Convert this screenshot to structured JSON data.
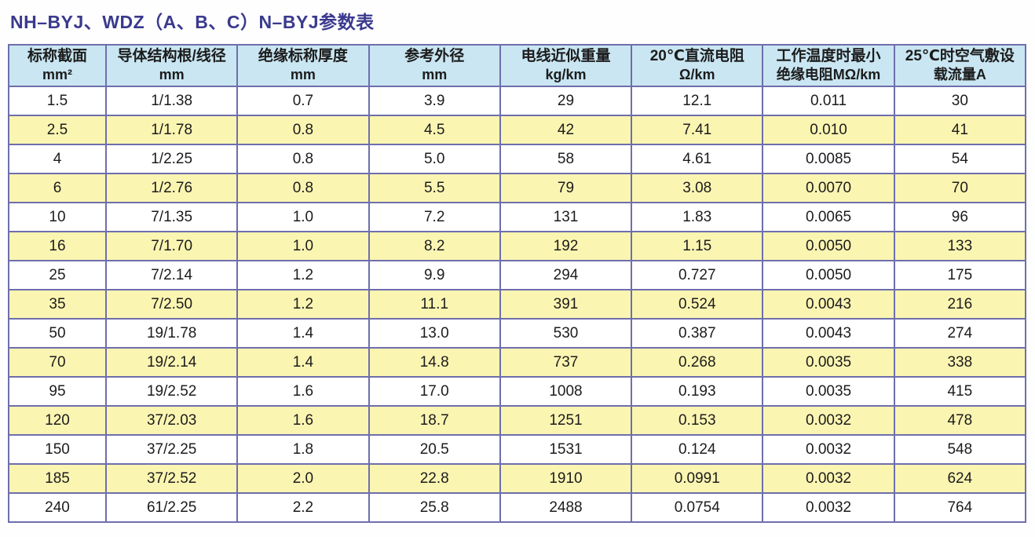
{
  "page": {
    "title": "NH–BYJ、WDZ（A、B、C）N–BYJ参数表"
  },
  "colors": {
    "title_text": "#3a3a8e",
    "header_background": "#c9e6f2",
    "row_alt_background": "#fbf5b2",
    "row_background": "#ffffff",
    "grid_border": "#6e6ead",
    "cell_text": "#1c1c1c"
  },
  "table": {
    "columns": [
      {
        "line1": "标称截面",
        "line2": "mm²"
      },
      {
        "line1": "导体结构根/线径",
        "line2": "mm"
      },
      {
        "line1": "绝缘标称厚度",
        "line2": "mm"
      },
      {
        "line1": "参考外径",
        "line2": "mm"
      },
      {
        "line1": "电线近似重量",
        "line2": "kg/km"
      },
      {
        "line1": "20℃直流电阻",
        "line2": "Ω/km"
      },
      {
        "line1": "工作温度时最小",
        "line2": "绝缘电阻MΩ/km"
      },
      {
        "line1": "25℃时空气敷设",
        "line2": "载流量A"
      }
    ],
    "rows": [
      [
        "1.5",
        "1/1.38",
        "0.7",
        "3.9",
        "29",
        "12.1",
        "0.011",
        "30"
      ],
      [
        "2.5",
        "1/1.78",
        "0.8",
        "4.5",
        "42",
        "7.41",
        "0.010",
        "41"
      ],
      [
        "4",
        "1/2.25",
        "0.8",
        "5.0",
        "58",
        "4.61",
        "0.0085",
        "54"
      ],
      [
        "6",
        "1/2.76",
        "0.8",
        "5.5",
        "79",
        "3.08",
        "0.0070",
        "70"
      ],
      [
        "10",
        "7/1.35",
        "1.0",
        "7.2",
        "131",
        "1.83",
        "0.0065",
        "96"
      ],
      [
        "16",
        "7/1.70",
        "1.0",
        "8.2",
        "192",
        "1.15",
        "0.0050",
        "133"
      ],
      [
        "25",
        "7/2.14",
        "1.2",
        "9.9",
        "294",
        "0.727",
        "0.0050",
        "175"
      ],
      [
        "35",
        "7/2.50",
        "1.2",
        "11.1",
        "391",
        "0.524",
        "0.0043",
        "216"
      ],
      [
        "50",
        "19/1.78",
        "1.4",
        "13.0",
        "530",
        "0.387",
        "0.0043",
        "274"
      ],
      [
        "70",
        "19/2.14",
        "1.4",
        "14.8",
        "737",
        "0.268",
        "0.0035",
        "338"
      ],
      [
        "95",
        "19/2.52",
        "1.6",
        "17.0",
        "1008",
        "0.193",
        "0.0035",
        "415"
      ],
      [
        "120",
        "37/2.03",
        "1.6",
        "18.7",
        "1251",
        "0.153",
        "0.0032",
        "478"
      ],
      [
        "150",
        "37/2.25",
        "1.8",
        "20.5",
        "1531",
        "0.124",
        "0.0032",
        "548"
      ],
      [
        "185",
        "37/2.52",
        "2.0",
        "22.8",
        "1910",
        "0.0991",
        "0.0032",
        "624"
      ],
      [
        "240",
        "61/2.25",
        "2.2",
        "25.8",
        "2488",
        "0.0754",
        "0.0032",
        "764"
      ]
    ]
  }
}
